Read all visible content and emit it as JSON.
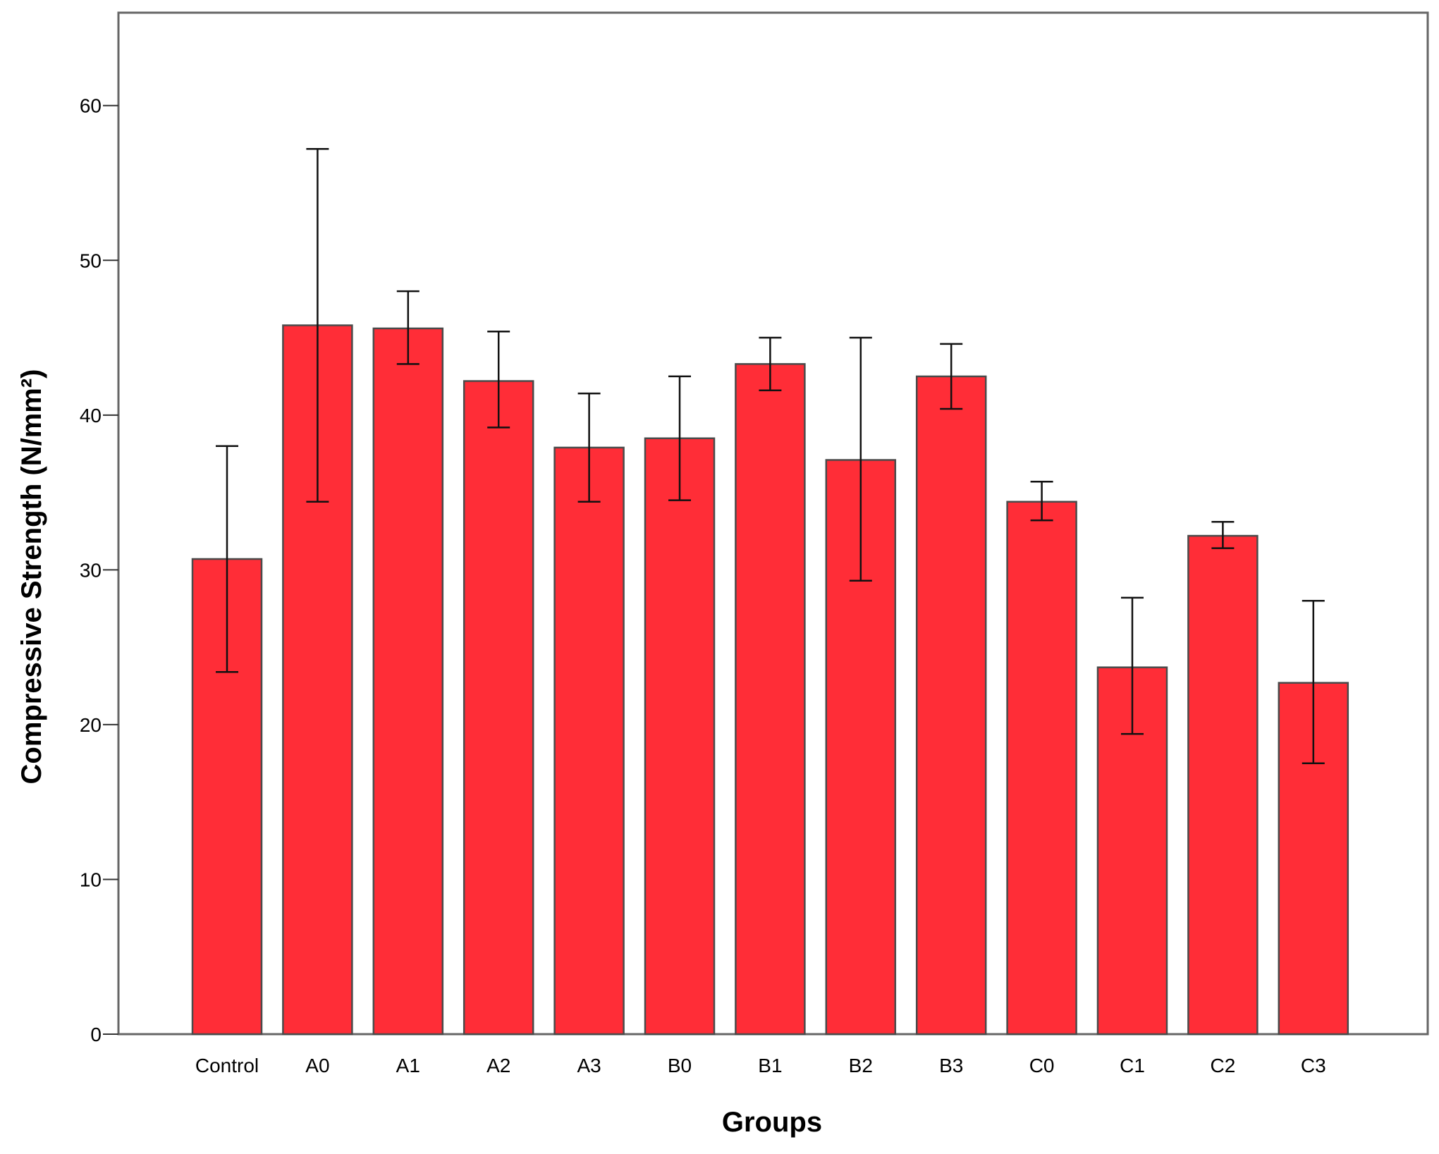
{
  "chart_data": {
    "type": "bar",
    "xlabel": "Groups",
    "ylabel": "Compressive Strength (N/mm²)",
    "categories": [
      "Control",
      "A0",
      "A1",
      "A2",
      "A3",
      "B0",
      "B1",
      "B2",
      "B3",
      "C0",
      "C1",
      "C2",
      "C3"
    ],
    "values": [
      30.7,
      45.8,
      45.6,
      42.2,
      37.9,
      38.5,
      43.3,
      37.1,
      42.5,
      34.4,
      23.7,
      32.2,
      22.7
    ],
    "error_low": [
      23.4,
      34.4,
      43.3,
      39.2,
      34.4,
      34.5,
      41.6,
      29.3,
      40.4,
      33.2,
      19.4,
      31.4,
      17.5
    ],
    "error_high": [
      38.0,
      57.2,
      48.0,
      45.4,
      41.4,
      42.5,
      45.0,
      45.0,
      44.6,
      35.7,
      28.2,
      33.1,
      28.0
    ],
    "ylim": [
      0,
      66
    ],
    "yticks": [
      0,
      10,
      20,
      30,
      40,
      50,
      60
    ],
    "grid": false,
    "bar_color": "#ff2d37"
  }
}
